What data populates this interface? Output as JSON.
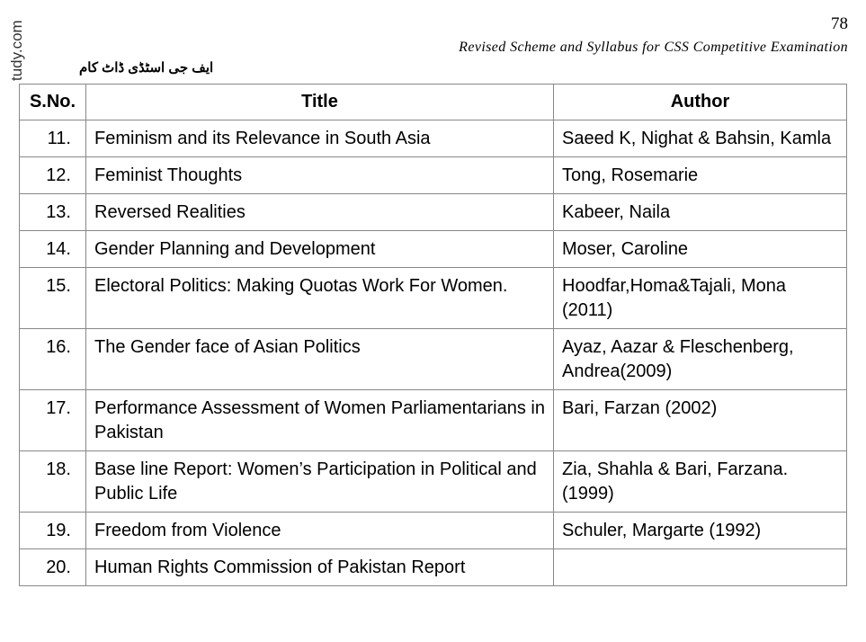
{
  "header": {
    "page_number": "78",
    "title": "Revised Scheme and Syllabus for CSS Competitive Examination",
    "urdu_watermark": "ایف جی اسٹڈی ڈاٹ کام",
    "side_watermark": "tudy.com"
  },
  "table": {
    "columns": [
      "S.No.",
      "Title",
      "Author"
    ],
    "rows": [
      {
        "no": "11.",
        "title": "Feminism and its Relevance in South Asia",
        "author": "Saeed K, Nighat & Bahsin, Kamla"
      },
      {
        "no": "12.",
        "title": "Feminist Thoughts",
        "author": "Tong, Rosemarie"
      },
      {
        "no": "13.",
        "title": "Reversed Realities",
        "author": "Kabeer, Naila"
      },
      {
        "no": "14.",
        "title": "Gender Planning and Development",
        "author": "Moser, Caroline"
      },
      {
        "no": "15.",
        "title": "Electoral Politics: Making Quotas Work For Women.",
        "author": "Hoodfar,Homa&Tajali, Mona (2011)"
      },
      {
        "no": "16.",
        "title": "The Gender face of Asian Politics",
        "author": "Ayaz,  Aazar & Fleschenberg, Andrea(2009)"
      },
      {
        "no": "17.",
        "title": "Performance Assessment of Women Parliamentarians in Pakistan",
        "author": "Bari, Farzan (2002)"
      },
      {
        "no": "18.",
        "title": "Base line Report: Women’s Participation in Political and Public Life",
        "author": "Zia, Shahla & Bari, Farzana. (1999)"
      },
      {
        "no": "19.",
        "title": "Freedom from Violence",
        "author": "Schuler, Margarte  (1992)"
      },
      {
        "no": "20.",
        "title": "Human Rights Commission of Pakistan Report",
        "author": ""
      }
    ]
  }
}
